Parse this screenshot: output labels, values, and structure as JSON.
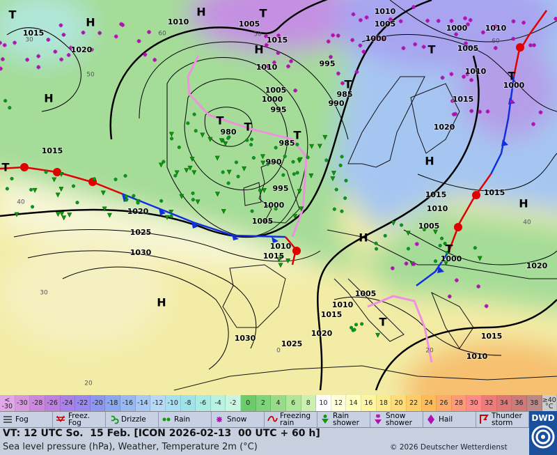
{
  "map": {
    "pressure_labels": [
      "1015",
      "1020",
      "1010",
      "1005",
      "1015",
      "1010",
      "1005",
      "1000",
      "1000",
      "1010",
      "1005",
      "1010",
      "1000",
      "1015",
      "1020",
      "1010",
      "995",
      "1005",
      "1000",
      "995",
      "985",
      "990",
      "980",
      "985",
      "990",
      "995",
      "1000",
      "1005",
      "1010",
      "1015",
      "1015",
      "1020",
      "1025",
      "1030",
      "1015",
      "1015",
      "1010",
      "1005",
      "1000",
      "1020",
      "1005",
      "1010",
      "1015",
      "1020",
      "1025",
      "1030",
      "1015",
      "1010"
    ],
    "centers": [
      "T",
      "H",
      "H",
      "T",
      "H",
      "H",
      "T",
      "T",
      "T",
      "T",
      "T",
      "T",
      "H",
      "H",
      "H",
      "T",
      "H",
      "T",
      "T"
    ],
    "temperature_labels": [
      "30",
      "50",
      "40",
      "30",
      "20",
      "0",
      "60",
      "20",
      "40",
      "60",
      "50"
    ]
  },
  "color_scale": {
    "labels": [
      "<\n-30",
      "-30",
      "-28",
      "-26",
      "-24",
      "-22",
      "-20",
      "-18",
      "-16",
      "-14",
      "-12",
      "-10",
      "-8",
      "-6",
      "-4",
      "-2",
      "0",
      "2",
      "4",
      "6",
      "8",
      "10",
      "12",
      "14",
      "16",
      "18",
      "20",
      "22",
      "24",
      "26",
      "28",
      "30",
      "32",
      "34",
      "36",
      "38",
      "≥40\n°C"
    ],
    "colors": [
      "#e0a8e8",
      "#d898e0",
      "#cc88dd",
      "#bb80e0",
      "#aa80ea",
      "#9a88ee",
      "#8c98f0",
      "#8aa8f0",
      "#98b8f2",
      "#a8c8f5",
      "#b8d8f8",
      "#a8e0f2",
      "#a0e4ea",
      "#a8ece2",
      "#b8f2e0",
      "#c8f6e0",
      "#6ccc6c",
      "#7ed47a",
      "#98dc88",
      "#b0e69a",
      "#ccf0ae",
      "#ffffff",
      "#ffffdc",
      "#ffffbe",
      "#fff7a0",
      "#ffec88",
      "#ffdc78",
      "#ffcc66",
      "#ffbb58",
      "#ffaa66",
      "#ff9a78",
      "#ff8a88",
      "#ee7a7a",
      "#dd7878",
      "#cc7a7a",
      "#bb8888",
      "#cccccc"
    ]
  },
  "legend": [
    "Fog",
    "Freez.\nFog",
    "Drizzle",
    "Rain",
    "Snow",
    "Freezing\nrain",
    "Rain\nshower",
    "Snow\nshower",
    "Hail",
    "Thunder\nstorm"
  ],
  "footer": {
    "valid": "VT: 12 UTC So.  15 Feb. [ICON 2026-02-13  00 UTC + 60 h]",
    "description": "Sea level pressure (hPa), Weather, Temperature 2m (°C)",
    "copyright": "© 2026 Deutscher Wetterdienst",
    "logo": "DWD"
  }
}
